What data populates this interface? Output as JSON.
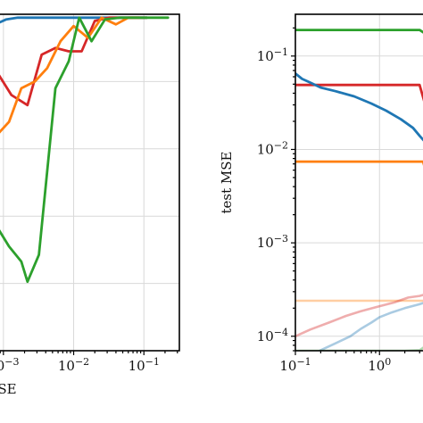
{
  "chart_data": [
    {
      "type": "line",
      "title": "",
      "xlabel": "SE",
      "ylabel": "",
      "xscale": "log",
      "xlim": [
        0.00075,
        0.32
      ],
      "yscale": "linear",
      "ylim": [
        0,
        1
      ],
      "y_tick_labels_visible": false,
      "grid": true,
      "x_ticks": [
        {
          "value": 0.001,
          "label": "10",
          "exp": "-3"
        },
        {
          "value": 0.01,
          "label": "10",
          "exp": "-2"
        },
        {
          "value": 0.1,
          "label": "10",
          "exp": "-1"
        }
      ],
      "series": [
        {
          "color": "#1f77b4",
          "x": [
            0.0008,
            0.0011,
            0.0016,
            0.0024,
            0.0035,
            0.0055,
            0.0085,
            0.013,
            0.02,
            0.032,
            0.05,
            0.08,
            0.11
          ],
          "y": [
            0.972,
            0.985,
            0.99,
            0.99,
            0.99,
            0.99,
            0.99,
            0.99,
            0.99,
            0.99,
            0.99,
            0.99,
            0.99
          ]
        },
        {
          "color": "#d62728",
          "x": [
            0.0008,
            0.0013,
            0.0022,
            0.0035,
            0.0055,
            0.0085,
            0.013,
            0.02,
            0.032,
            0.05,
            0.08,
            0.11
          ],
          "y": [
            0.83,
            0.76,
            0.73,
            0.88,
            0.9,
            0.89,
            0.89,
            0.98,
            0.99,
            0.99,
            0.99,
            0.99
          ]
        },
        {
          "color": "#ff7f0e",
          "x": [
            0.0008,
            0.0012,
            0.0018,
            0.0028,
            0.0042,
            0.0065,
            0.01,
            0.016,
            0.025,
            0.04,
            0.06,
            0.085
          ],
          "y": [
            0.64,
            0.68,
            0.78,
            0.8,
            0.84,
            0.92,
            0.965,
            0.93,
            0.99,
            0.97,
            0.99,
            0.99
          ]
        },
        {
          "color": "#2ca02c",
          "x": [
            0.0008,
            0.0012,
            0.0018,
            0.0022,
            0.0032,
            0.0055,
            0.0085,
            0.012,
            0.018,
            0.028,
            0.045,
            0.075,
            0.12,
            0.22
          ],
          "y": [
            0.37,
            0.31,
            0.265,
            0.205,
            0.285,
            0.78,
            0.86,
            0.99,
            0.92,
            0.985,
            0.99,
            0.99,
            0.99,
            0.99
          ]
        }
      ]
    },
    {
      "type": "line",
      "title": "",
      "xlabel": "",
      "ylabel": "test MSE",
      "xscale": "log",
      "xlim": [
        0.1,
        4.0
      ],
      "yscale": "log",
      "ylim": [
        7e-05,
        0.28
      ],
      "grid": true,
      "x_ticks": [
        {
          "value": 0.1,
          "label": "10",
          "exp": "-1"
        },
        {
          "value": 1,
          "label": "10",
          "exp": "0"
        }
      ],
      "y_ticks": [
        {
          "value": 0.1,
          "label": "10",
          "exp": "-1"
        },
        {
          "value": 0.01,
          "label": "10",
          "exp": "-2"
        },
        {
          "value": 0.001,
          "label": "10",
          "exp": "-3"
        },
        {
          "value": 0.0001,
          "label": "10",
          "exp": "-4"
        }
      ],
      "series": [
        {
          "color": "#2ca02c",
          "x": [
            0.1,
            0.2,
            0.5,
            1.0,
            2.0,
            3.0,
            4.0
          ],
          "y": [
            0.19,
            0.19,
            0.19,
            0.19,
            0.19,
            0.19,
            0.16
          ]
        },
        {
          "color": "#d62728",
          "x": [
            0.1,
            0.2,
            0.4,
            0.7,
            1.0,
            1.5,
            2.0,
            3.0,
            3.5,
            4.0
          ],
          "y": [
            0.049,
            0.049,
            0.049,
            0.049,
            0.049,
            0.049,
            0.049,
            0.049,
            0.03,
            0.018
          ]
        },
        {
          "color": "#1f77b4",
          "x": [
            0.1,
            0.12,
            0.15,
            0.2,
            0.3,
            0.5,
            0.8,
            1.2,
            1.8,
            2.5,
            3.0,
            3.5,
            4.0
          ],
          "y": [
            0.065,
            0.057,
            0.052,
            0.046,
            0.042,
            0.037,
            0.031,
            0.026,
            0.021,
            0.017,
            0.014,
            0.012,
            0.011
          ]
        },
        {
          "color": "#ff7f0e",
          "x": [
            0.1,
            0.5,
            1.0,
            2.0,
            3.0,
            3.3,
            4.0
          ],
          "y": [
            0.0074,
            0.0074,
            0.0074,
            0.0074,
            0.0074,
            0.0074,
            0.004
          ]
        },
        {
          "color": "#ff7f0e",
          "faded": true,
          "x": [
            0.1,
            0.5,
            1.0,
            2.0,
            4.0
          ],
          "y": [
            0.00024,
            0.00024,
            0.00024,
            0.00024,
            0.00024
          ]
        },
        {
          "color": "#d62728",
          "faded": true,
          "x": [
            0.1,
            0.15,
            0.25,
            0.4,
            0.6,
            1.0,
            1.5,
            2.2,
            3.0,
            4.0
          ],
          "y": [
            0.0001,
            0.000118,
            0.00014,
            0.000165,
            0.000185,
            0.00021,
            0.00023,
            0.00026,
            0.00027,
            0.00029
          ]
        },
        {
          "color": "#1f77b4",
          "faded": true,
          "x": [
            0.15,
            0.2,
            0.3,
            0.45,
            0.6,
            0.8,
            1.0,
            1.4,
            2.0,
            3.0,
            4.0
          ],
          "y": [
            6e-05,
            7.1e-05,
            8.4e-05,
            0.0001,
            0.00012,
            0.00014,
            0.00016,
            0.00018,
            0.0002,
            0.00022,
            0.00024
          ]
        },
        {
          "color": "#2ca02c",
          "faded": true,
          "x": [
            0.1,
            0.5,
            1.0,
            2.0,
            3.0,
            3.5,
            4.0
          ],
          "y": [
            7e-05,
            7e-05,
            7e-05,
            7e-05,
            7.1e-05,
            7.8e-05,
            9e-05
          ]
        }
      ]
    }
  ]
}
